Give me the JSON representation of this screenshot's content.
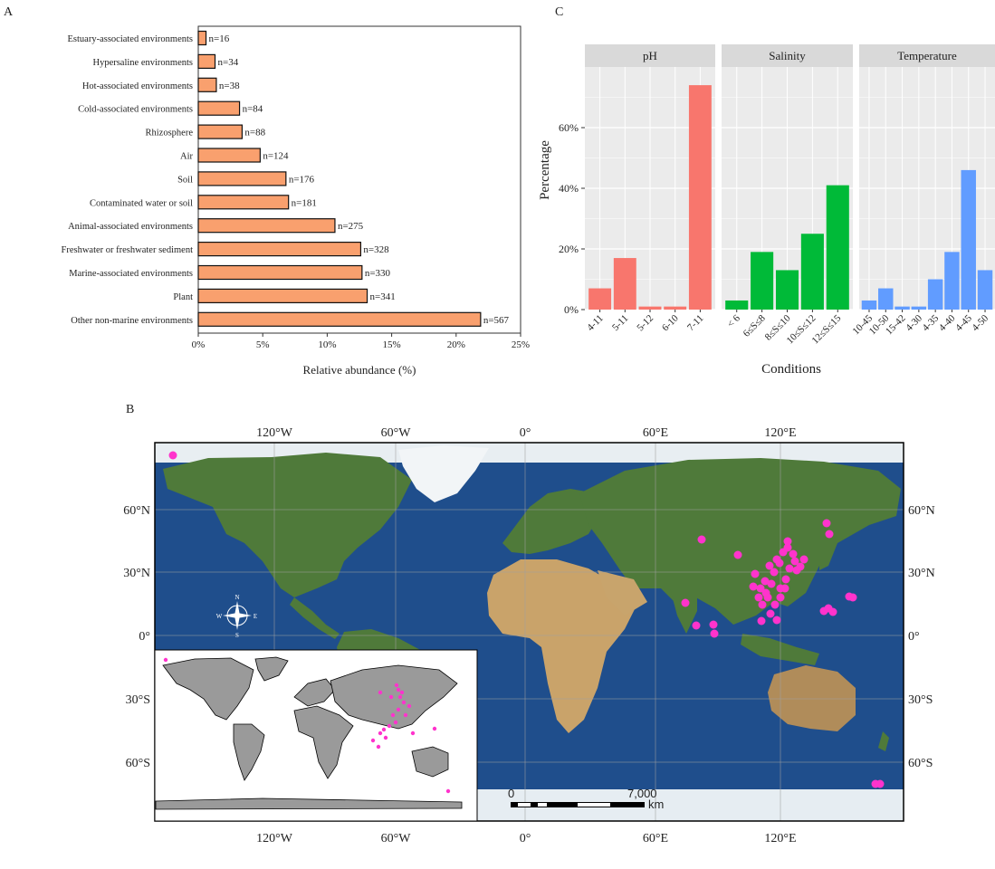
{
  "panel_labels": {
    "a": "A",
    "b": "B",
    "c": "C"
  },
  "chart_data": [
    {
      "type": "bar",
      "orientation": "horizontal",
      "panel": "A",
      "title": "",
      "categories": [
        "Estuary-associated environments",
        "Hypersaline environments",
        "Hot-associated environments",
        "Cold-associated environments",
        "Rhizosphere",
        "Air",
        "Soil",
        "Contaminated water or soil",
        "Animal-associated environments",
        "Freshwater or freshwater sediment",
        "Marine-associated environments",
        "Plant",
        "Other non-marine environments"
      ],
      "values": [
        0.6,
        1.3,
        1.4,
        3.2,
        3.4,
        4.8,
        6.8,
        7.0,
        10.6,
        12.6,
        12.7,
        13.1,
        21.9
      ],
      "data_labels": [
        "n=16",
        "n=34",
        "n=38",
        "n=84",
        "n=88",
        "n=124",
        "n=176",
        "n=181",
        "n=275",
        "n=328",
        "n=330",
        "n=341",
        "n=567"
      ],
      "xlabel": "Relative abundance (%)",
      "ylabel": "",
      "xlim": [
        0,
        25
      ],
      "xticks": [
        "0%",
        "5%",
        "10%",
        "15%",
        "20%",
        "25%"
      ],
      "bar_color": "#f9a06e",
      "grid": false
    },
    {
      "type": "bar",
      "panel": "C",
      "title": "",
      "facets": [
        {
          "name": "pH",
          "color": "#f8766d",
          "categories": [
            "4-11",
            "5-11",
            "5-12",
            "6-10",
            "7-11"
          ],
          "values": [
            7,
            17,
            1,
            1,
            74
          ]
        },
        {
          "name": "Salinity",
          "color": "#00ba38",
          "categories": [
            "< 6",
            "6≤S≤8",
            "8≤S≤10",
            "10≤S≤12",
            "12≤S≤15"
          ],
          "values": [
            3,
            19,
            13,
            25,
            41
          ]
        },
        {
          "name": "Temperature",
          "color": "#619cff",
          "categories": [
            "10-45",
            "10-50",
            "15-42",
            "4-30",
            "4-35",
            "4-40",
            "4-45",
            "4-50"
          ],
          "values": [
            3,
            7,
            1,
            1,
            10,
            19,
            46,
            13
          ]
        }
      ],
      "xlabel": "Conditions",
      "ylabel": "Percentage",
      "ylim": [
        0,
        80
      ],
      "yticks": [
        "0%",
        "20%",
        "40%",
        "60%"
      ],
      "grid": true
    }
  ],
  "map": {
    "panel": "B",
    "top_lon_labels": [
      "120°W",
      "60°W",
      "0°",
      "60°E",
      "120°E"
    ],
    "bottom_lon_labels": [
      "120°W",
      "60°W",
      "0°",
      "60°E",
      "120°E"
    ],
    "left_lat_labels": [
      "60°N",
      "30°N",
      "0°",
      "30°S",
      "60°S"
    ],
    "right_lat_labels": [
      "60°N",
      "30°N",
      "0°",
      "30°S",
      "60°S"
    ],
    "compass": {
      "n": "N",
      "s": "S",
      "e": "E",
      "w": "W"
    },
    "scalebar": {
      "start": "0",
      "end": "7,000",
      "unit": "km"
    },
    "point_color": "#ff33cc",
    "ocean_color": "#1f4e8c",
    "land_color": "#4f7a3a",
    "inset_land_color": "#9a9a9a"
  }
}
